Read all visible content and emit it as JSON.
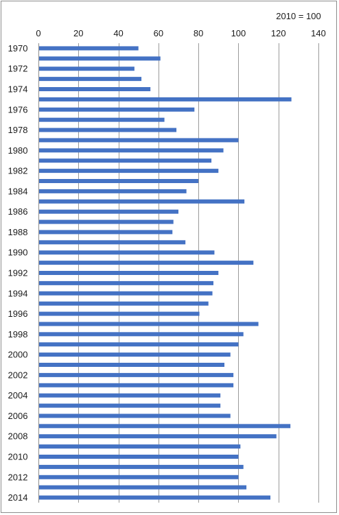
{
  "chart_data": {
    "type": "bar",
    "orientation": "horizontal",
    "annotation": "2010 = 100",
    "xlim": [
      0,
      140
    ],
    "x_ticks": [
      0,
      20,
      40,
      60,
      80,
      100,
      120,
      140
    ],
    "grid": true,
    "series_color": "#4472c4",
    "categories": [
      "1970",
      "1971",
      "1972",
      "1973",
      "1974",
      "1975",
      "1976",
      "1977",
      "1978",
      "1979",
      "1980",
      "1981",
      "1982",
      "1983",
      "1984",
      "1985",
      "1986",
      "1987",
      "1988",
      "1989",
      "1990",
      "1991",
      "1992",
      "1993",
      "1994",
      "1995",
      "1996",
      "1997",
      "1998",
      "1999",
      "2000",
      "2001",
      "2002",
      "2003",
      "2004",
      "2005",
      "2006",
      "2007",
      "2008",
      "2009",
      "2010",
      "2011",
      "2012",
      "2013",
      "2014"
    ],
    "category_labels_shown": [
      "1970",
      "1972",
      "1974",
      "1976",
      "1978",
      "1980",
      "1982",
      "1984",
      "1986",
      "1988",
      "1990",
      "1992",
      "1994",
      "1996",
      "1998",
      "2000",
      "2002",
      "2004",
      "2006",
      "2008",
      "2010",
      "2012",
      "2014"
    ],
    "values": [
      50,
      61,
      48,
      51.5,
      56,
      126.5,
      78,
      63,
      69,
      100,
      92.5,
      86.5,
      90,
      80,
      74,
      103,
      70,
      67.5,
      67,
      73.5,
      88,
      107.5,
      90,
      87.5,
      87,
      85,
      80.5,
      110,
      102.5,
      100,
      96,
      93,
      97.5,
      97.5,
      91,
      91,
      96,
      126,
      119,
      101,
      100,
      102.5,
      100,
      104,
      116
    ]
  }
}
